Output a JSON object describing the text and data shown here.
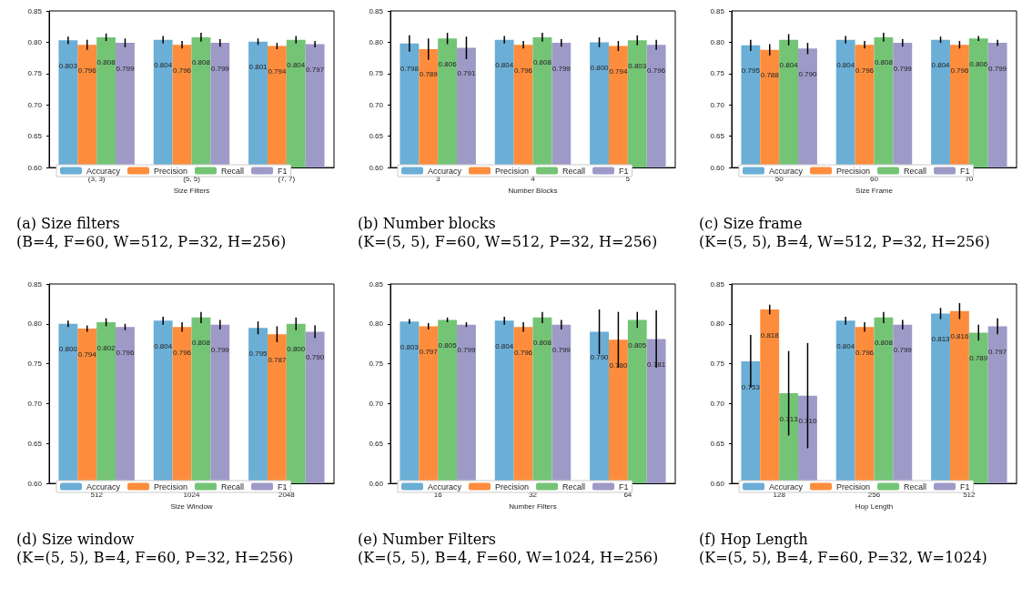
{
  "chart_data": [
    {
      "type": "bar",
      "xlabel": "Size Filters",
      "categories": [
        "(3, 3)",
        "(5, 5)",
        "(7, 7)"
      ],
      "ylim": [
        0.6,
        0.85
      ],
      "yticks": [
        {
          "value": 0.6,
          "label": "0.60"
        },
        {
          "value": 0.65,
          "label": "0.65"
        },
        {
          "value": 0.7,
          "label": "0.70"
        },
        {
          "value": 0.75,
          "label": "0.75"
        },
        {
          "value": 0.8,
          "label": "0.80"
        },
        {
          "value": 0.85,
          "label": "0.85"
        }
      ],
      "legend": "bottom left",
      "data_labels": true,
      "annotations": [
        "(a) Size filters",
        "(B=4, F=60, W=512, P=32, H=256)"
      ],
      "series": [
        {
          "name": "Accuracy",
          "color": "#6baed6",
          "values": [
            0.803,
            0.804,
            0.801
          ],
          "errors": [
            0.006,
            0.006,
            0.005
          ]
        },
        {
          "name": "Precision",
          "color": "#fd8d3c",
          "values": [
            0.796,
            0.796,
            0.794
          ],
          "errors": [
            0.008,
            0.006,
            0.005
          ]
        },
        {
          "name": "Recall",
          "color": "#74c476",
          "values": [
            0.808,
            0.808,
            0.804
          ],
          "errors": [
            0.006,
            0.007,
            0.006
          ]
        },
        {
          "name": "F1",
          "color": "#9e9ac8",
          "values": [
            0.799,
            0.799,
            0.797
          ],
          "errors": [
            0.007,
            0.006,
            0.005
          ]
        }
      ]
    },
    {
      "type": "bar",
      "xlabel": "Number Blocks",
      "categories": [
        "3",
        "4",
        "5"
      ],
      "ylim": [
        0.6,
        0.85
      ],
      "yticks": [
        {
          "value": 0.6,
          "label": "0.60"
        },
        {
          "value": 0.65,
          "label": "0.65"
        },
        {
          "value": 0.7,
          "label": "0.70"
        },
        {
          "value": 0.75,
          "label": "0.75"
        },
        {
          "value": 0.8,
          "label": "0.80"
        },
        {
          "value": 0.85,
          "label": "0.85"
        }
      ],
      "legend": "bottom left",
      "data_labels": true,
      "annotations": [
        "(b) Number blocks",
        "(K=(5, 5), F=60, W=512, P=32, H=256)"
      ],
      "series": [
        {
          "name": "Accuracy",
          "color": "#6baed6",
          "values": [
            0.798,
            0.804,
            0.8
          ],
          "value_labels": [
            "0.798",
            "0.804",
            "0.800"
          ],
          "errors": [
            0.013,
            0.006,
            0.008
          ]
        },
        {
          "name": "Precision",
          "color": "#fd8d3c",
          "values": [
            0.789,
            0.796,
            0.794
          ],
          "errors": [
            0.017,
            0.006,
            0.008
          ]
        },
        {
          "name": "Recall",
          "color": "#74c476",
          "values": [
            0.806,
            0.808,
            0.803
          ],
          "errors": [
            0.009,
            0.007,
            0.008
          ]
        },
        {
          "name": "F1",
          "color": "#9e9ac8",
          "values": [
            0.791,
            0.799,
            0.796
          ],
          "errors": [
            0.018,
            0.006,
            0.008
          ]
        }
      ]
    },
    {
      "type": "bar",
      "xlabel": "Size Frame",
      "categories": [
        "50",
        "60",
        "70"
      ],
      "ylim": [
        0.6,
        0.85
      ],
      "yticks": [
        {
          "value": 0.6,
          "label": "0.60"
        },
        {
          "value": 0.65,
          "label": "0.65"
        },
        {
          "value": 0.7,
          "label": "0.70"
        },
        {
          "value": 0.75,
          "label": "0.75"
        },
        {
          "value": 0.8,
          "label": "0.80"
        },
        {
          "value": 0.85,
          "label": "0.85"
        }
      ],
      "legend": "bottom left",
      "data_labels": true,
      "annotations": [
        "(c) Size frame",
        "(K=(5, 5), B=4, W=512, P=32, H=256)"
      ],
      "series": [
        {
          "name": "Accuracy",
          "color": "#6baed6",
          "values": [
            0.795,
            0.804,
            0.804
          ],
          "errors": [
            0.009,
            0.006,
            0.005
          ]
        },
        {
          "name": "Precision",
          "color": "#fd8d3c",
          "values": [
            0.788,
            0.796,
            0.796
          ],
          "errors": [
            0.009,
            0.006,
            0.006
          ]
        },
        {
          "name": "Recall",
          "color": "#74c476",
          "values": [
            0.804,
            0.808,
            0.806
          ],
          "errors": [
            0.009,
            0.007,
            0.004
          ]
        },
        {
          "name": "F1",
          "color": "#9e9ac8",
          "values": [
            0.79,
            0.799,
            0.799
          ],
          "value_labels": [
            "0.790",
            "0.799",
            "0.799"
          ],
          "errors": [
            0.009,
            0.006,
            0.005
          ]
        }
      ]
    },
    {
      "type": "bar",
      "xlabel": "Size Window",
      "categories": [
        "512",
        "1024",
        "2048"
      ],
      "ylim": [
        0.6,
        0.85
      ],
      "yticks": [
        {
          "value": 0.6,
          "label": "0.60"
        },
        {
          "value": 0.65,
          "label": "0.65"
        },
        {
          "value": 0.7,
          "label": "0.70"
        },
        {
          "value": 0.75,
          "label": "0.75"
        },
        {
          "value": 0.8,
          "label": "0.80"
        },
        {
          "value": 0.85,
          "label": "0.85"
        }
      ],
      "legend": "bottom left",
      "data_labels": true,
      "annotations": [
        "(d) Size window",
        "(K=(5, 5), B=4, F=60, P=32, H=256)"
      ],
      "series": [
        {
          "name": "Accuracy",
          "color": "#6baed6",
          "values": [
            0.8,
            0.804,
            0.795
          ],
          "value_labels": [
            "0.800",
            "0.804",
            "0.795"
          ],
          "errors": [
            0.004,
            0.005,
            0.008
          ]
        },
        {
          "name": "Precision",
          "color": "#fd8d3c",
          "values": [
            0.794,
            0.796,
            0.787
          ],
          "errors": [
            0.004,
            0.006,
            0.01
          ]
        },
        {
          "name": "Recall",
          "color": "#74c476",
          "values": [
            0.802,
            0.808,
            0.8
          ],
          "value_labels": [
            "0.802",
            "0.808",
            "0.800"
          ],
          "errors": [
            0.005,
            0.007,
            0.008
          ]
        },
        {
          "name": "F1",
          "color": "#9e9ac8",
          "values": [
            0.796,
            0.799,
            0.79
          ],
          "value_labels": [
            "0.796",
            "0.799",
            "0.790"
          ],
          "errors": [
            0.004,
            0.006,
            0.008
          ]
        }
      ]
    },
    {
      "type": "bar",
      "xlabel": "Number Filters",
      "categories": [
        "16",
        "32",
        "64"
      ],
      "ylim": [
        0.6,
        0.85
      ],
      "yticks": [
        {
          "value": 0.6,
          "label": "0.60"
        },
        {
          "value": 0.65,
          "label": "0.65"
        },
        {
          "value": 0.7,
          "label": "0.70"
        },
        {
          "value": 0.75,
          "label": "0.75"
        },
        {
          "value": 0.8,
          "label": "0.80"
        },
        {
          "value": 0.85,
          "label": "0.85"
        }
      ],
      "legend": "bottom left",
      "data_labels": true,
      "annotations": [
        "(e) Number Filters",
        "(K=(5, 5), B=4, F=60, W=1024, H=256)"
      ],
      "series": [
        {
          "name": "Accuracy",
          "color": "#6baed6",
          "values": [
            0.803,
            0.804,
            0.79
          ],
          "value_labels": [
            "0.803",
            "0.804",
            "0.790"
          ],
          "errors": [
            0.003,
            0.005,
            0.028
          ]
        },
        {
          "name": "Precision",
          "color": "#fd8d3c",
          "values": [
            0.797,
            0.796,
            0.78
          ],
          "value_labels": [
            "0.797",
            "0.796",
            "0.780"
          ],
          "errors": [
            0.004,
            0.006,
            0.035
          ]
        },
        {
          "name": "Recall",
          "color": "#74c476",
          "values": [
            0.805,
            0.808,
            0.805
          ],
          "errors": [
            0.003,
            0.007,
            0.01
          ]
        },
        {
          "name": "F1",
          "color": "#9e9ac8",
          "values": [
            0.799,
            0.799,
            0.781
          ],
          "errors": [
            0.003,
            0.006,
            0.036
          ]
        }
      ]
    },
    {
      "type": "bar",
      "xlabel": "Hop Length",
      "categories": [
        "128",
        "256",
        "512"
      ],
      "ylim": [
        0.6,
        0.85
      ],
      "yticks": [
        {
          "value": 0.6,
          "label": "0.60"
        },
        {
          "value": 0.65,
          "label": "0.65"
        },
        {
          "value": 0.7,
          "label": "0.70"
        },
        {
          "value": 0.75,
          "label": "0.75"
        },
        {
          "value": 0.8,
          "label": "0.80"
        },
        {
          "value": 0.85,
          "label": "0.85"
        }
      ],
      "legend": "bottom left",
      "data_labels": true,
      "annotations": [
        "(f) Hop Length",
        "(K=(5, 5), B=4, F=60, P=32, W=1024)"
      ],
      "series": [
        {
          "name": "Accuracy",
          "color": "#6baed6",
          "values": [
            0.753,
            0.804,
            0.813
          ],
          "errors": [
            0.033,
            0.005,
            0.007
          ]
        },
        {
          "name": "Precision",
          "color": "#fd8d3c",
          "values": [
            0.818,
            0.796,
            0.816
          ],
          "errors": [
            0.006,
            0.006,
            0.01
          ]
        },
        {
          "name": "Recall",
          "color": "#74c476",
          "values": [
            0.713,
            0.808,
            0.789
          ],
          "errors": [
            0.053,
            0.007,
            0.01
          ]
        },
        {
          "name": "F1",
          "color": "#9e9ac8",
          "values": [
            0.71,
            0.799,
            0.797
          ],
          "value_labels": [
            "0.710",
            "0.799",
            "0.797"
          ],
          "errors": [
            0.066,
            0.006,
            0.01
          ]
        }
      ]
    }
  ]
}
